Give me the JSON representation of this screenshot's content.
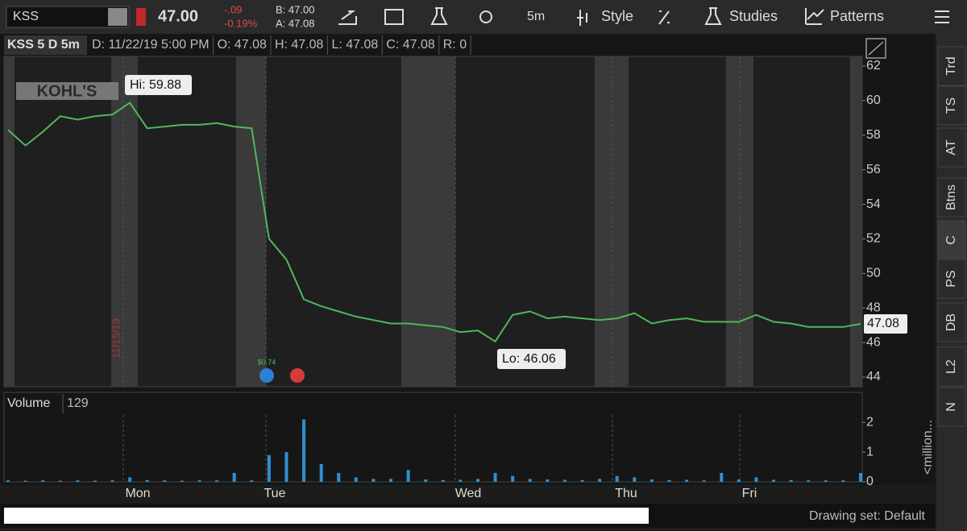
{
  "toolbar": {
    "symbol": "KSS",
    "last": "47.00",
    "change": "-.09",
    "change_pct": "-0.19%",
    "bid": "B: 47.00",
    "ask": "A: 47.08",
    "period": "5m",
    "style": "Style",
    "studies": "Studies",
    "patterns": "Patterns"
  },
  "chart_data": [
    {
      "type": "line",
      "title": "KSS 5 D 5m",
      "header": [
        "D: 11/22/19 5:00 PM",
        "O: 47.08",
        "H: 47.08",
        "L: 47.08",
        "C: 47.08",
        "R: 0"
      ],
      "series": [
        {
          "name": "KSS",
          "color": "#4fb85a",
          "values": [
            58.3,
            57.4,
            58.2,
            59.1,
            58.9,
            59.1,
            59.2,
            59.88,
            58.4,
            58.5,
            58.6,
            58.6,
            58.7,
            58.5,
            58.4,
            52.0,
            50.8,
            48.5,
            48.1,
            47.8,
            47.5,
            47.3,
            47.1,
            47.1,
            47.0,
            46.9,
            46.6,
            46.7,
            46.06,
            47.6,
            47.8,
            47.4,
            47.5,
            47.4,
            47.3,
            47.4,
            47.7,
            47.1,
            47.3,
            47.4,
            47.2,
            47.2,
            47.2,
            47.6,
            47.2,
            47.1,
            46.9,
            46.9,
            46.9,
            47.08
          ]
        }
      ],
      "ylim": [
        43.44,
        62.56
      ],
      "yticks": [
        44,
        46,
        48,
        50,
        52,
        54,
        56,
        58,
        60,
        62
      ],
      "annotations": {
        "high": "Hi: 59.88",
        "low": "Lo: 46.06",
        "last": "47.08",
        "dividend": "$0.74",
        "date_marker": "11/15/19",
        "logo": "KOHL'S"
      }
    },
    {
      "type": "bar",
      "title": "Volume",
      "header": [
        "129"
      ],
      "y_label": "<million...",
      "color": "#2f8fd0",
      "values": [
        0.05,
        0.04,
        0.05,
        0.04,
        0.05,
        0.04,
        0.05,
        0.15,
        0.06,
        0.05,
        0.04,
        0.05,
        0.05,
        0.3,
        0.05,
        0.9,
        1.0,
        2.1,
        0.6,
        0.3,
        0.15,
        0.1,
        0.1,
        0.4,
        0.08,
        0.06,
        0.07,
        0.1,
        0.3,
        0.2,
        0.1,
        0.08,
        0.07,
        0.06,
        0.1,
        0.2,
        0.15,
        0.08,
        0.06,
        0.07,
        0.05,
        0.3,
        0.08,
        0.15,
        0.07,
        0.06,
        0.05,
        0.05,
        0.05,
        0.3
      ],
      "ylim": [
        0,
        2.25
      ],
      "yticks": [
        0,
        1,
        2
      ],
      "day_labels": [
        "Mon",
        "Tue",
        "Wed",
        "Thu",
        "Fri"
      ]
    }
  ],
  "sidebar": [
    "Trd",
    "TS",
    "AT",
    "Btns",
    "C",
    "PS",
    "DB",
    "L2",
    "N"
  ],
  "footer": {
    "drawing_set": "Drawing set: Default"
  }
}
